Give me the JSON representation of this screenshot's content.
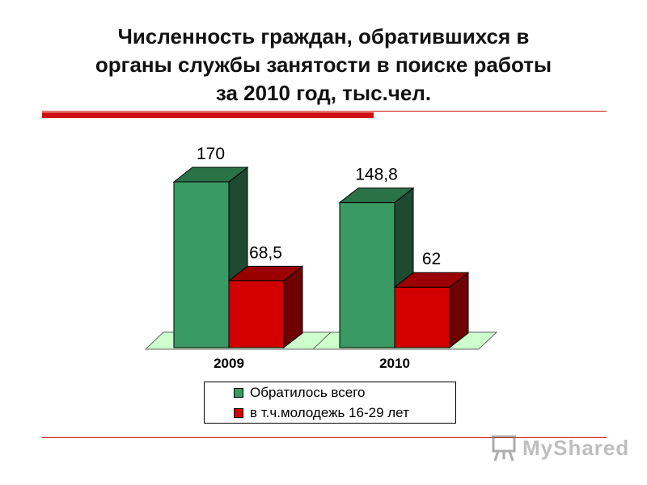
{
  "title_lines": [
    "Численность граждан, обратившихся в",
    "органы службы занятости в поиске работы",
    "за 2010 год, тыс.чел."
  ],
  "colors": {
    "accent": "#d01010",
    "series_total_front": "#3a9a64",
    "series_total_top": "#2a7248",
    "series_total_side": "#1e4a32",
    "series_youth_front": "#d20000",
    "series_youth_top": "#9a0000",
    "series_youth_side": "#6e0000",
    "floor": "#ccffcc"
  },
  "chart_data": {
    "type": "bar",
    "title": "Численность граждан, обратившихся в органы службы занятости в поиске работы за 2010 год, тыс.чел.",
    "categories": [
      "2009",
      "2010"
    ],
    "series": [
      {
        "name": "Обратилось всего",
        "values": [
          170,
          148.8
        ],
        "value_labels": [
          "170",
          "148,8"
        ]
      },
      {
        "name": "в т.ч.молодежь 16-29 лет",
        "values": [
          68.5,
          62
        ],
        "value_labels": [
          "68,5",
          "62"
        ]
      }
    ],
    "ylim": [
      0,
      170
    ],
    "grid": false,
    "legend_position": "bottom",
    "style": "3d"
  },
  "watermark": {
    "text": "MyShared",
    "icon": "presentation-board-icon"
  }
}
